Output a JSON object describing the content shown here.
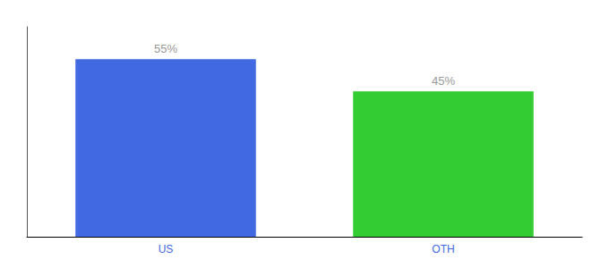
{
  "chart_data": {
    "type": "bar",
    "categories": [
      "US",
      "OTH"
    ],
    "values": [
      55,
      45
    ],
    "colors": [
      "#4169e1",
      "#33cc33"
    ],
    "value_labels": [
      "55%",
      "45%"
    ],
    "data_labels": true,
    "ylim": [
      0,
      65
    ],
    "tick_labels": "x",
    "grid": false
  }
}
